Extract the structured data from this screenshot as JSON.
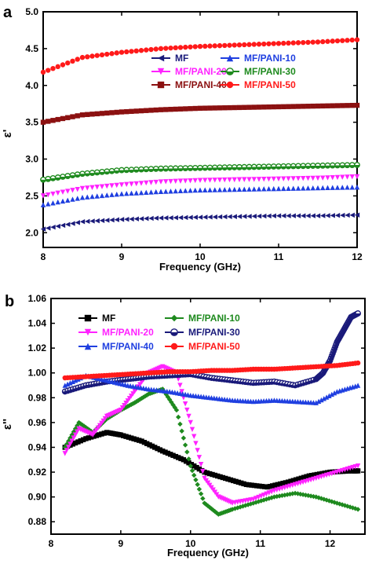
{
  "chart_data": [
    {
      "type": "scatter",
      "panel_label": "a",
      "xlabel": "Frequency (GHz)",
      "ylabel": "ε'",
      "xlim": [
        8,
        12
      ],
      "ylim": [
        1.8,
        5.0
      ],
      "x_ticks": [
        "8",
        "9",
        "10",
        "11",
        "12"
      ],
      "y_ticks": [
        "2.0",
        "2.5",
        "3.0",
        "3.5",
        "4.0",
        "4.5",
        "5.0"
      ],
      "grid": false,
      "legend_position": "middle-center",
      "series": [
        {
          "name": "MF",
          "color": "#1a1a7a",
          "marker": "triangle-left",
          "x": [
            8.0,
            8.5,
            9.0,
            9.5,
            10.0,
            10.5,
            11.0,
            11.5,
            12.0
          ],
          "y": [
            2.05,
            2.15,
            2.18,
            2.2,
            2.21,
            2.22,
            2.23,
            2.23,
            2.24
          ]
        },
        {
          "name": "MF/PANI-10",
          "color": "#1f3fe0",
          "marker": "triangle-up",
          "x": [
            8.0,
            8.5,
            9.0,
            9.5,
            10.0,
            10.5,
            11.0,
            11.5,
            12.0
          ],
          "y": [
            2.38,
            2.48,
            2.53,
            2.56,
            2.58,
            2.59,
            2.6,
            2.61,
            2.62
          ]
        },
        {
          "name": "MF/PANI-20",
          "color": "#ff22ff",
          "marker": "triangle-down",
          "x": [
            8.0,
            8.5,
            9.0,
            9.5,
            10.0,
            10.5,
            11.0,
            11.5,
            12.0
          ],
          "y": [
            2.5,
            2.6,
            2.65,
            2.69,
            2.71,
            2.72,
            2.73,
            2.74,
            2.76
          ]
        },
        {
          "name": "MF/PANI-30",
          "color": "#1e8a1e",
          "marker": "half-circle",
          "x": [
            8.0,
            8.5,
            9.0,
            9.5,
            10.0,
            10.5,
            11.0,
            11.5,
            12.0
          ],
          "y": [
            2.72,
            2.8,
            2.85,
            2.87,
            2.88,
            2.89,
            2.9,
            2.91,
            2.92
          ]
        },
        {
          "name": "MF/PANI-40",
          "color": "#8b1010",
          "marker": "square",
          "x": [
            8.0,
            8.5,
            9.0,
            9.5,
            10.0,
            10.5,
            11.0,
            11.5,
            12.0
          ],
          "y": [
            3.5,
            3.6,
            3.64,
            3.67,
            3.69,
            3.7,
            3.71,
            3.72,
            3.73
          ]
        },
        {
          "name": "MF/PANI-50",
          "color": "#ff1a1a",
          "marker": "circle",
          "x": [
            8.0,
            8.5,
            9.0,
            9.5,
            10.0,
            10.5,
            11.0,
            11.5,
            12.0
          ],
          "y": [
            4.18,
            4.38,
            4.45,
            4.5,
            4.53,
            4.55,
            4.57,
            4.59,
            4.62
          ]
        }
      ]
    },
    {
      "type": "scatter",
      "panel_label": "b",
      "xlabel": "Frequency (GHz)",
      "ylabel": "ε''",
      "xlim": [
        8,
        12.5
      ],
      "ylim": [
        0.87,
        1.06
      ],
      "x_ticks": [
        "8",
        "9",
        "10",
        "11",
        "12"
      ],
      "y_ticks": [
        "0.88",
        "0.90",
        "0.92",
        "0.94",
        "0.96",
        "0.98",
        "1.00",
        "1.02",
        "1.04",
        "1.06"
      ],
      "grid": false,
      "legend_position": "top-left",
      "series": [
        {
          "name": "MF",
          "color": "#000000",
          "marker": "square",
          "x": [
            8.2,
            8.5,
            8.8,
            9.0,
            9.3,
            9.6,
            9.9,
            10.2,
            10.5,
            10.8,
            11.1,
            11.4,
            11.7,
            12.0,
            12.3,
            12.4
          ],
          "y": [
            0.94,
            0.947,
            0.952,
            0.95,
            0.945,
            0.937,
            0.93,
            0.92,
            0.915,
            0.91,
            0.908,
            0.912,
            0.917,
            0.92,
            0.921,
            0.921
          ]
        },
        {
          "name": "MF/PANI-10",
          "color": "#1e8a1e",
          "marker": "diamond",
          "x": [
            8.2,
            8.4,
            8.6,
            8.8,
            9.0,
            9.2,
            9.4,
            9.6,
            9.8,
            10.0,
            10.2,
            10.4,
            10.6,
            10.9,
            11.2,
            11.5,
            11.8,
            12.1,
            12.4
          ],
          "y": [
            0.94,
            0.96,
            0.952,
            0.963,
            0.97,
            0.976,
            0.983,
            0.987,
            0.97,
            0.925,
            0.895,
            0.886,
            0.89,
            0.895,
            0.9,
            0.903,
            0.9,
            0.895,
            0.89
          ]
        },
        {
          "name": "MF/PANI-20",
          "color": "#ff22ff",
          "marker": "triangle-down",
          "x": [
            8.2,
            8.4,
            8.6,
            8.8,
            9.0,
            9.2,
            9.4,
            9.6,
            9.8,
            10.0,
            10.2,
            10.4,
            10.6,
            10.9,
            11.2,
            11.5,
            11.8,
            12.1,
            12.4
          ],
          "y": [
            0.935,
            0.955,
            0.95,
            0.965,
            0.97,
            0.985,
            1.0,
            1.005,
            1.0,
            0.96,
            0.915,
            0.9,
            0.895,
            0.898,
            0.905,
            0.91,
            0.915,
            0.92,
            0.925
          ]
        },
        {
          "name": "MF/PANI-30",
          "color": "#1a1a7a",
          "marker": "half-circle",
          "x": [
            8.2,
            8.5,
            8.8,
            9.1,
            9.4,
            9.7,
            10.0,
            10.3,
            10.6,
            10.9,
            11.2,
            11.5,
            11.8,
            11.9,
            12.0,
            12.1,
            12.2,
            12.3,
            12.4
          ],
          "y": [
            0.985,
            0.99,
            0.993,
            0.995,
            0.997,
            0.998,
            0.999,
            0.996,
            0.994,
            0.992,
            0.993,
            0.99,
            0.995,
            1.0,
            1.01,
            1.025,
            1.035,
            1.045,
            1.048
          ]
        },
        {
          "name": "MF/PANI-40",
          "color": "#1f3fe0",
          "marker": "triangle-up",
          "x": [
            8.2,
            8.5,
            8.8,
            9.1,
            9.4,
            9.7,
            10.0,
            10.3,
            10.6,
            10.9,
            11.2,
            11.5,
            11.8,
            12.1,
            12.4
          ],
          "y": [
            0.99,
            0.998,
            0.994,
            0.99,
            0.987,
            0.985,
            0.982,
            0.98,
            0.978,
            0.977,
            0.978,
            0.977,
            0.976,
            0.985,
            0.99
          ]
        },
        {
          "name": "MF/PANI-50",
          "color": "#ff1a1a",
          "marker": "circle",
          "x": [
            8.2,
            8.5,
            8.8,
            9.1,
            9.4,
            9.7,
            10.0,
            10.3,
            10.6,
            10.9,
            11.2,
            11.5,
            11.8,
            12.1,
            12.4
          ],
          "y": [
            0.996,
            0.997,
            0.998,
            0.999,
            1.0,
            1.001,
            1.001,
            1.002,
            1.002,
            1.003,
            1.003,
            1.004,
            1.005,
            1.006,
            1.008
          ]
        }
      ]
    }
  ]
}
